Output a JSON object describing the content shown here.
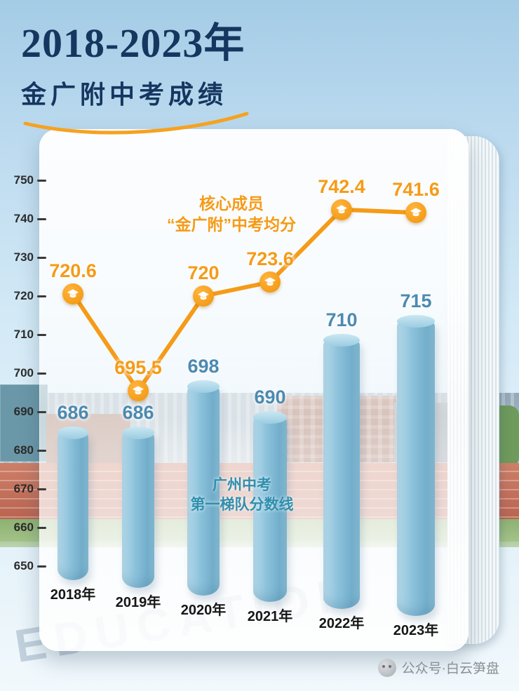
{
  "header": {
    "title": "2018-2023年",
    "subtitle": "金广附中考成绩"
  },
  "chart_data": {
    "type": "combo",
    "title": "2018-2023年金广附中考成绩",
    "categories": [
      "2018年",
      "2019年",
      "2020年",
      "2021年",
      "2022年",
      "2023年"
    ],
    "series": [
      {
        "name": "广州中考第一梯队分数线",
        "type": "bar",
        "color": "#85bcd8",
        "values": [
          686,
          686,
          698,
          690,
          710,
          715
        ],
        "labels": [
          "686",
          "686",
          "698",
          "690",
          "710",
          "715"
        ]
      },
      {
        "name": "核心成员“金广附”中考均分",
        "type": "line",
        "color": "#f59b17",
        "values": [
          720.6,
          695.5,
          720,
          723.6,
          742.4,
          741.6
        ],
        "labels": [
          "720.6",
          "695.5",
          "720",
          "723.6",
          "742.4",
          "741.6"
        ]
      }
    ],
    "ylim": [
      650,
      750
    ],
    "yticks": [
      750,
      740,
      730,
      720,
      710,
      700,
      690,
      680,
      670,
      660,
      650
    ],
    "grid": false,
    "legend_position": "inline-annotations",
    "annotations": {
      "line_series": {
        "line1": "核心成员",
        "line2": "“金广附”中考均分"
      },
      "bar_series": {
        "line1": "广州中考",
        "line2": "第一梯队分数线"
      }
    }
  },
  "colors": {
    "title_navy": "#15365f",
    "accent_orange": "#f59b17",
    "bar_blue": "#85bcd8",
    "bar_label_blue": "#4c8ab1",
    "annotation_teal": "#2f8fae"
  },
  "watermark": {
    "education": "EDUCATION",
    "credit": "公众号·白云笋盘"
  }
}
